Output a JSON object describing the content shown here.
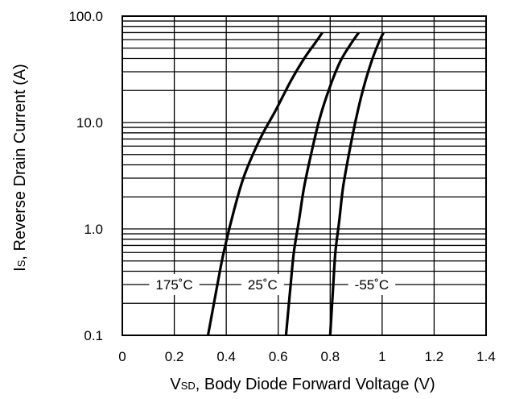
{
  "chart_data": {
    "type": "line",
    "title": "",
    "xlabel": {
      "main_prefix": "V",
      "sub": "SD",
      "rest": ", Body Diode Forward Voltage (V)"
    },
    "ylabel": {
      "main_prefix": "I",
      "sub": "S",
      "rest": ", Reverse Drain Current (A)"
    },
    "x_ticks": [
      "0",
      "0.2",
      "0.4",
      "0.6",
      "0.8",
      "1",
      "1.2",
      "1.4"
    ],
    "y_ticks": [
      "0.1",
      "1.0",
      "10.0",
      "100.0"
    ],
    "xlim": [
      0,
      1.4
    ],
    "ylim": [
      0.1,
      100
    ],
    "y_scale": "log",
    "grid": true,
    "series": [
      {
        "name": "175°C",
        "label": "175˚C",
        "x": [
          0.33,
          0.36,
          0.39,
          0.43,
          0.47,
          0.53,
          0.59,
          0.65,
          0.7,
          0.74,
          0.77
        ],
        "y": [
          0.1,
          0.25,
          0.6,
          1.5,
          3.2,
          7.0,
          13.0,
          25.0,
          40.0,
          55.0,
          70.0
        ]
      },
      {
        "name": "25°C",
        "label": "25˚C",
        "x": [
          0.63,
          0.645,
          0.66,
          0.68,
          0.7,
          0.73,
          0.76,
          0.8,
          0.84,
          0.88,
          0.91
        ],
        "y": [
          0.1,
          0.25,
          0.6,
          1.2,
          2.5,
          5.5,
          11.0,
          22.0,
          38.0,
          55.0,
          70.0
        ]
      },
      {
        "name": "-55°C",
        "label": "-55˚C",
        "x": [
          0.8,
          0.81,
          0.82,
          0.835,
          0.85,
          0.875,
          0.9,
          0.93,
          0.96,
          0.985,
          1.005
        ],
        "y": [
          0.1,
          0.25,
          0.6,
          1.2,
          2.5,
          5.5,
          11.0,
          22.0,
          38.0,
          55.0,
          70.0
        ]
      }
    ],
    "series_labels": [
      {
        "text": "175˚C",
        "at_x": 0.2,
        "at_y": 0.3
      },
      {
        "text": "25˚C",
        "at_x": 0.54,
        "at_y": 0.3
      },
      {
        "text": "-55˚C",
        "at_x": 0.96,
        "at_y": 0.3
      }
    ]
  }
}
